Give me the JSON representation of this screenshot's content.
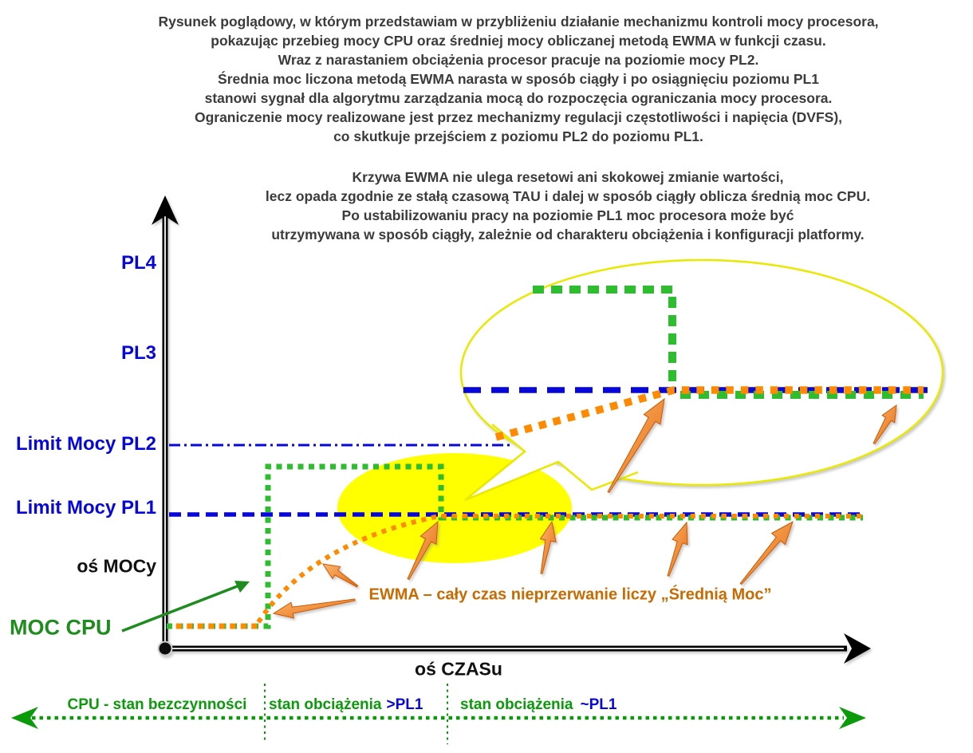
{
  "header": {
    "intro": "Rysunek poglądowy, w którym przedstawiam w przybliżeniu działanie mechanizmu kontroli mocy procesora,\npokazując przebieg mocy CPU oraz średniej mocy obliczanej metodą EWMA w funkcji czasu.\nWraz z narastaniem obciążenia procesor pracuje na poziomie mocy PL2.\nŚrednia moc liczona metodą EWMA narasta w sposób ciągły i po osiągnięciu poziomu PL1\nstanowi sygnał dla algorytmu zarządzania mocą do rozpoczęcia ograniczania mocy procesora.\nOgraniczenie mocy realizowane jest przez mechanizmy regulacji częstotliwości i napięcia (DVFS),\nco skutkuje przejściem z poziomu PL2 do poziomu PL1.",
    "note": "Krzywa EWMA nie ulega resetowi ani skokowej zmianie wartości,\nlecz opada zgodnie ze stałą czasową TAU i dalej w sposób ciągły oblicza średnią moc CPU.\nPo ustabilizowaniu pracy na poziomie PL1 moc procesora może być\nutrzymywana w sposób ciągły, zależnie od charakteru obciążenia i konfiguracji platformy."
  },
  "axes": {
    "y_label": "oś MOCy",
    "x_label": "oś CZASu"
  },
  "levels": {
    "pl4": "PL4",
    "pl3": "PL3",
    "pl2": "Limit Mocy PL2",
    "pl1": "Limit Mocy PL1"
  },
  "series": {
    "cpu_label": "MOC CPU",
    "ewma_annotation": "EWMA – cały czas nieprzerwanie liczy „Średnią Moc”"
  },
  "timeline": {
    "idle": "CPU - stan bezczynności",
    "load_high": "stan obciążenia",
    "load_high_level": ">PL1",
    "load_steady": "stan obciążenia",
    "load_steady_level": "~PL1"
  },
  "colors": {
    "blue_line": "#0707d9",
    "green_curve": "#2ebd2e",
    "green_text": "#0a9a0a",
    "cpu_green": "#1e8c1e",
    "orange_curve": "#ff8a00",
    "orange_text": "#c96a00",
    "highlight_yellow": "#ffff00",
    "title_gray": "#3b3b3b"
  }
}
